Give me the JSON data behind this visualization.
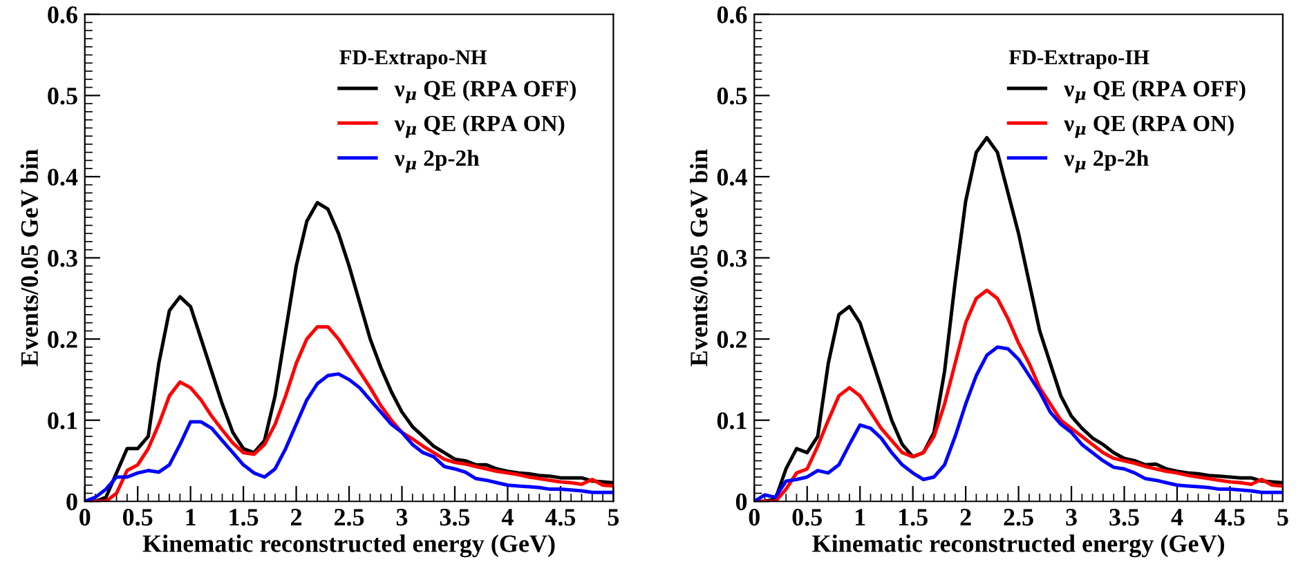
{
  "chart_data": [
    {
      "type": "line",
      "xlabel": "Kinematic reconstructed energy (GeV)",
      "ylabel": "Events/0.05 GeV bin",
      "legend_title": "FD-Extrapo-NH",
      "legend": "top right",
      "grid": false,
      "marker": "none",
      "line_style": "solid",
      "xlim": [
        0,
        5
      ],
      "ylim": [
        0,
        0.6
      ],
      "xticks": [
        0,
        0.5,
        1,
        1.5,
        2,
        2.5,
        3,
        3.5,
        4,
        4.5,
        5
      ],
      "yticks": [
        0,
        0.1,
        0.2,
        0.3,
        0.4,
        0.5,
        0.6
      ],
      "x": [
        0,
        0.1,
        0.2,
        0.3,
        0.4,
        0.5,
        0.6,
        0.7,
        0.8,
        0.9,
        1.0,
        1.1,
        1.2,
        1.3,
        1.4,
        1.5,
        1.6,
        1.7,
        1.8,
        1.9,
        2.0,
        2.1,
        2.2,
        2.3,
        2.4,
        2.5,
        2.6,
        2.7,
        2.8,
        2.9,
        3.0,
        3.1,
        3.2,
        3.3,
        3.4,
        3.5,
        3.6,
        3.7,
        3.8,
        3.9,
        4.0,
        4.1,
        4.2,
        4.3,
        4.4,
        4.5,
        4.6,
        4.7,
        4.8,
        4.9,
        5.0
      ],
      "series": [
        {
          "name": "ν$_{μ}$ QE (RPA OFF)",
          "color": "#000000",
          "values": [
            0,
            0,
            0.005,
            0.035,
            0.065,
            0.065,
            0.08,
            0.17,
            0.235,
            0.252,
            0.24,
            0.2,
            0.16,
            0.12,
            0.085,
            0.065,
            0.06,
            0.075,
            0.13,
            0.21,
            0.29,
            0.345,
            0.368,
            0.36,
            0.33,
            0.29,
            0.245,
            0.2,
            0.165,
            0.135,
            0.11,
            0.092,
            0.08,
            0.068,
            0.06,
            0.052,
            0.05,
            0.045,
            0.045,
            0.04,
            0.037,
            0.035,
            0.034,
            0.032,
            0.031,
            0.029,
            0.029,
            0.029,
            0.025,
            0.024,
            0.023
          ]
        },
        {
          "name": "ν$_{μ}$ QE (RPA ON)",
          "color": "#ff0000",
          "values": [
            0,
            0,
            0,
            0.01,
            0.038,
            0.045,
            0.065,
            0.095,
            0.13,
            0.147,
            0.14,
            0.125,
            0.105,
            0.088,
            0.072,
            0.06,
            0.058,
            0.07,
            0.095,
            0.13,
            0.17,
            0.2,
            0.215,
            0.215,
            0.2,
            0.18,
            0.16,
            0.14,
            0.118,
            0.1,
            0.085,
            0.077,
            0.068,
            0.06,
            0.052,
            0.048,
            0.046,
            0.043,
            0.04,
            0.037,
            0.035,
            0.033,
            0.03,
            0.028,
            0.026,
            0.024,
            0.023,
            0.021,
            0.027,
            0.02,
            0.019
          ]
        },
        {
          "name": "ν$_{μ}$ 2p-2h",
          "color": "#0000ff",
          "values": [
            0,
            0.005,
            0.015,
            0.03,
            0.03,
            0.035,
            0.038,
            0.036,
            0.045,
            0.07,
            0.098,
            0.098,
            0.09,
            0.075,
            0.06,
            0.045,
            0.035,
            0.03,
            0.04,
            0.065,
            0.095,
            0.125,
            0.145,
            0.155,
            0.157,
            0.15,
            0.14,
            0.125,
            0.11,
            0.095,
            0.085,
            0.07,
            0.06,
            0.055,
            0.043,
            0.04,
            0.036,
            0.028,
            0.026,
            0.023,
            0.02,
            0.019,
            0.018,
            0.017,
            0.015,
            0.015,
            0.014,
            0.013,
            0.011,
            0.011,
            0.011
          ]
        }
      ]
    },
    {
      "type": "line",
      "xlabel": "Kinematic reconstructed energy (GeV)",
      "ylabel": "Events/0.05 GeV bin",
      "legend_title": "FD-Extrapo-IH",
      "legend": "top right",
      "grid": false,
      "marker": "none",
      "line_style": "solid",
      "xlim": [
        0,
        5
      ],
      "ylim": [
        0,
        0.6
      ],
      "xticks": [
        0,
        0.5,
        1,
        1.5,
        2,
        2.5,
        3,
        3.5,
        4,
        4.5,
        5
      ],
      "yticks": [
        0,
        0.1,
        0.2,
        0.3,
        0.4,
        0.5,
        0.6
      ],
      "x": [
        0,
        0.1,
        0.2,
        0.3,
        0.4,
        0.5,
        0.6,
        0.7,
        0.8,
        0.9,
        1.0,
        1.1,
        1.2,
        1.3,
        1.4,
        1.5,
        1.6,
        1.7,
        1.8,
        1.9,
        2.0,
        2.1,
        2.2,
        2.3,
        2.4,
        2.5,
        2.6,
        2.7,
        2.8,
        2.9,
        3.0,
        3.1,
        3.2,
        3.3,
        3.4,
        3.5,
        3.6,
        3.7,
        3.8,
        3.9,
        4.0,
        4.1,
        4.2,
        4.3,
        4.4,
        4.5,
        4.6,
        4.7,
        4.8,
        4.9,
        5.0
      ],
      "series": [
        {
          "name": "ν$_{μ}$ QE (RPA OFF)",
          "color": "#000000",
          "values": [
            0,
            0,
            0.003,
            0.04,
            0.065,
            0.06,
            0.08,
            0.17,
            0.23,
            0.24,
            0.22,
            0.18,
            0.14,
            0.1,
            0.07,
            0.055,
            0.06,
            0.085,
            0.16,
            0.27,
            0.37,
            0.43,
            0.448,
            0.43,
            0.38,
            0.33,
            0.27,
            0.21,
            0.17,
            0.13,
            0.105,
            0.09,
            0.078,
            0.07,
            0.06,
            0.053,
            0.05,
            0.045,
            0.046,
            0.04,
            0.037,
            0.035,
            0.034,
            0.032,
            0.031,
            0.03,
            0.029,
            0.029,
            0.025,
            0.024,
            0.023
          ]
        },
        {
          "name": "ν$_{μ}$ QE (RPA ON)",
          "color": "#ff0000",
          "values": [
            0,
            0,
            0,
            0.015,
            0.035,
            0.04,
            0.068,
            0.1,
            0.13,
            0.14,
            0.13,
            0.11,
            0.09,
            0.075,
            0.06,
            0.055,
            0.06,
            0.08,
            0.12,
            0.17,
            0.22,
            0.25,
            0.26,
            0.25,
            0.225,
            0.195,
            0.17,
            0.14,
            0.12,
            0.1,
            0.09,
            0.08,
            0.07,
            0.06,
            0.053,
            0.05,
            0.047,
            0.043,
            0.04,
            0.037,
            0.035,
            0.032,
            0.03,
            0.028,
            0.026,
            0.024,
            0.023,
            0.021,
            0.027,
            0.02,
            0.019
          ]
        },
        {
          "name": "ν$_{μ}$ 2p-2h",
          "color": "#0000ff",
          "values": [
            0,
            0.008,
            0.005,
            0.025,
            0.027,
            0.03,
            0.038,
            0.035,
            0.045,
            0.07,
            0.094,
            0.09,
            0.078,
            0.06,
            0.045,
            0.035,
            0.027,
            0.03,
            0.045,
            0.08,
            0.12,
            0.155,
            0.18,
            0.19,
            0.188,
            0.175,
            0.155,
            0.135,
            0.11,
            0.095,
            0.085,
            0.07,
            0.06,
            0.05,
            0.042,
            0.04,
            0.035,
            0.028,
            0.026,
            0.023,
            0.02,
            0.019,
            0.018,
            0.017,
            0.015,
            0.015,
            0.014,
            0.013,
            0.011,
            0.011,
            0.011
          ]
        }
      ]
    }
  ]
}
